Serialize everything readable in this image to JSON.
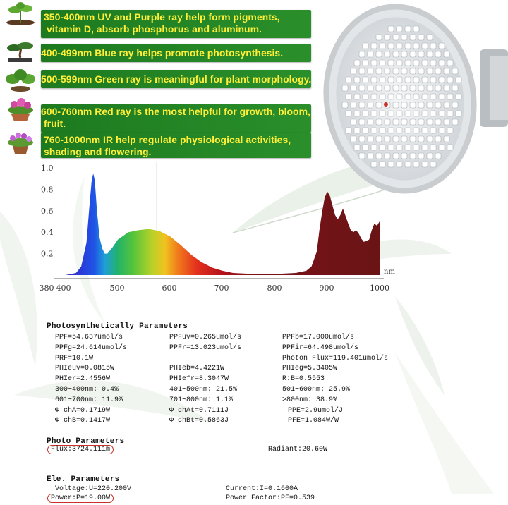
{
  "banners": [
    {
      "line1": "350-400nm UV and Purple ray help form pigments,",
      "line2": "vitamin D, absorb phosphorus and aluminum."
    },
    {
      "line1": "400-499nm Blue ray helps promote photosynthesis.",
      "line2": ""
    },
    {
      "line1": "500-599nm Green ray is meaningful for plant morphology.",
      "line2": ""
    },
    {
      "line1": "600-760nm Red ray is the most helpful for growth, bloom,",
      "line2": "fruit."
    },
    {
      "line1": "760-1000nm IR help regulate physiological activities,",
      "line2": "shading and flowering."
    }
  ],
  "colors": {
    "banner_bg": "#2a8f2b",
    "banner_text": "#ffef3a",
    "highlight": "#c8322a"
  },
  "chart_data": {
    "type": "area",
    "title": "",
    "xlabel": "nm",
    "ylabel": "",
    "xlim": [
      380,
      1000
    ],
    "ylim": [
      0,
      1.0
    ],
    "x_tick_labels": [
      "380",
      "400",
      "500",
      "600",
      "700",
      "800",
      "900",
      "1000"
    ],
    "y_tick_labels": [
      "1.0",
      "0.8",
      "0.6",
      "0.4",
      "0.2"
    ],
    "series": [
      {
        "x": [
          380,
          400,
          420,
          430,
          440,
          445,
          450,
          453,
          456,
          460,
          465,
          470,
          475,
          480,
          490,
          500,
          520,
          540,
          560,
          580,
          600,
          620,
          640,
          660,
          680,
          700,
          720,
          740,
          760,
          780,
          800,
          820,
          840,
          860,
          870,
          880,
          885,
          890,
          895,
          900,
          905,
          910,
          915,
          920,
          925,
          930,
          935,
          940,
          945,
          950,
          955,
          960,
          965,
          970,
          975,
          980,
          985,
          990,
          995,
          1000
        ],
        "y": [
          0.0,
          0.0,
          0.02,
          0.08,
          0.3,
          0.6,
          0.88,
          0.95,
          0.88,
          0.6,
          0.35,
          0.25,
          0.2,
          0.2,
          0.26,
          0.33,
          0.4,
          0.42,
          0.43,
          0.41,
          0.36,
          0.28,
          0.19,
          0.12,
          0.07,
          0.04,
          0.02,
          0.015,
          0.01,
          0.01,
          0.01,
          0.015,
          0.02,
          0.04,
          0.08,
          0.22,
          0.42,
          0.58,
          0.72,
          0.78,
          0.74,
          0.65,
          0.56,
          0.52,
          0.56,
          0.62,
          0.55,
          0.48,
          0.42,
          0.4,
          0.42,
          0.39,
          0.34,
          0.31,
          0.32,
          0.33,
          0.42,
          0.48,
          0.46,
          0.5
        ]
      }
    ],
    "grid": false
  },
  "photosynthetic": {
    "title": "Photosynthetically Parameters",
    "rows": [
      [
        "PPF=54.637umol/s",
        "PPFuv=0.265umol/s",
        "PPFb=17.000umol/s"
      ],
      [
        "PPFg=24.614umol/s",
        "PPFr=13.023umol/s",
        "PPFir=64.498umol/s"
      ],
      [
        "PRF=10.1W",
        "",
        "Photon Flux=119.401umol/s"
      ],
      [
        "PHIeuv=0.0815W",
        "PHIeb=4.4221W",
        "PHIeg=5.3405W"
      ],
      [
        "PHIer=2.4556W",
        "PHIefr=8.3047W",
        "R:B=0.5553"
      ],
      [
        "300~400nm: 0.4%",
        "401~500nm: 21.5%",
        "501~600nm: 25.9%"
      ],
      [
        "601~700nm: 11.9%",
        "701~800nm: 1.1%",
        ">800nm: 38.9%"
      ],
      [
        "Φ chA=0.1719W",
        "Φ chAt=0.7111J",
        "PPE=2.9umol/J"
      ],
      [
        "Φ chB=0.1417W",
        "Φ chBt=0.5863J",
        "PFE=1.084W/W"
      ]
    ]
  },
  "photo": {
    "title": "Photo Parameters",
    "flux": "Flux:3724.111m",
    "radiant": "Radiant:20.60W"
  },
  "ele": {
    "title": "Ele. Parameters",
    "voltage": "Voltage:U=220.200V",
    "current": "Current:I=0.1600A",
    "power": "Power:P=19.00W",
    "power_factor": "Power Factor:PF=0.539"
  }
}
